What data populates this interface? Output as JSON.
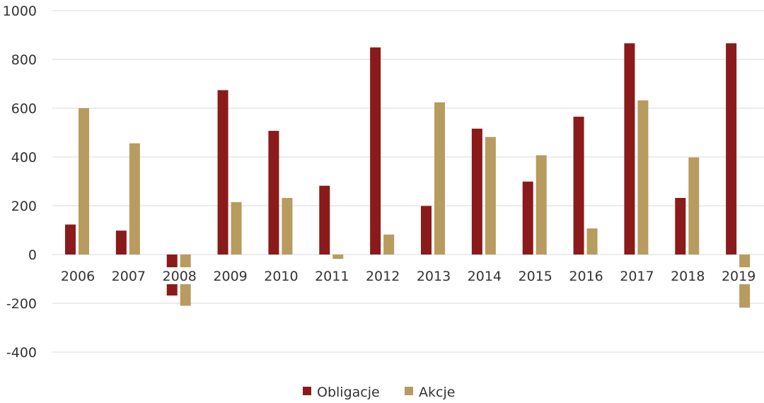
{
  "chart_data": {
    "type": "bar",
    "categories": [
      "2006",
      "2007",
      "2008",
      "2009",
      "2010",
      "2011",
      "2012",
      "2013",
      "2014",
      "2015",
      "2016",
      "2017",
      "2018",
      "2019"
    ],
    "series": [
      {
        "name": "Obligacje",
        "color": "#8b1a1a",
        "values": [
          123,
          98,
          -168,
          674,
          507,
          282,
          849,
          199,
          516,
          299,
          565,
          866,
          232,
          866
        ]
      },
      {
        "name": "Akcje",
        "color": "#b89b5e",
        "values": [
          600,
          456,
          -210,
          215,
          232,
          -18,
          82,
          624,
          482,
          407,
          107,
          632,
          398,
          -218
        ]
      }
    ],
    "yticks": [
      "1000",
      "800",
      "600",
      "400",
      "200",
      "0",
      "-200",
      "-400"
    ],
    "ylim": [
      -400,
      1000
    ],
    "grid": true,
    "legend": "bottom-center"
  }
}
